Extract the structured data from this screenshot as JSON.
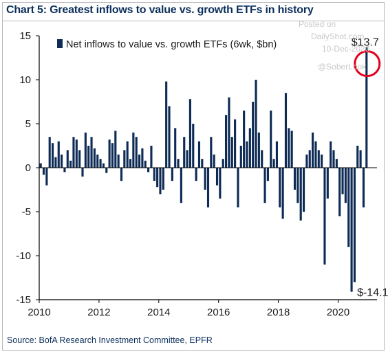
{
  "title": "Chart 5: Greatest inflows to value vs. growth ETFs in history",
  "source": "Source: BofA Research Investment Committee, EPFR",
  "watermark": {
    "posted_on": "Posted on",
    "site": "DailyShot.com",
    "date": "10-Dec-2020",
    "handle": "@SoberLook"
  },
  "colors": {
    "bar": "#0d2b55",
    "axis": "#000000",
    "highlight": "#e3001b",
    "title": "#0b2f5b"
  },
  "chart_data": {
    "type": "bar",
    "title": "Chart 5: Greatest inflows to value vs. growth ETFs in history",
    "xlabel": "",
    "ylabel": "",
    "xlim": [
      2010.0,
      2021.3
    ],
    "ylim": [
      -15,
      15
    ],
    "x_ticks": [
      2010,
      2012,
      2014,
      2016,
      2018,
      2020
    ],
    "y_ticks": [
      15,
      10,
      5,
      0,
      -5,
      -10,
      -15
    ],
    "grid": false,
    "legend": {
      "position": "top-left",
      "entries": [
        "Net inflows to value vs. growth ETFs (6wk, $bn)"
      ]
    },
    "series": [
      {
        "name": "Net inflows to value vs. growth ETFs (6wk, $bn)",
        "x": [
          2010.05,
          2010.15,
          2010.25,
          2010.35,
          2010.45,
          2010.55,
          2010.65,
          2010.75,
          2010.85,
          2010.95,
          2011.05,
          2011.15,
          2011.25,
          2011.35,
          2011.45,
          2011.55,
          2011.65,
          2011.75,
          2011.85,
          2011.95,
          2012.05,
          2012.15,
          2012.25,
          2012.35,
          2012.45,
          2012.55,
          2012.65,
          2012.75,
          2012.85,
          2012.95,
          2013.05,
          2013.15,
          2013.25,
          2013.35,
          2013.45,
          2013.55,
          2013.65,
          2013.75,
          2013.85,
          2013.95,
          2014.05,
          2014.15,
          2014.25,
          2014.35,
          2014.45,
          2014.55,
          2014.65,
          2014.75,
          2014.85,
          2014.95,
          2015.05,
          2015.15,
          2015.25,
          2015.35,
          2015.45,
          2015.55,
          2015.65,
          2015.75,
          2015.85,
          2015.95,
          2016.05,
          2016.15,
          2016.25,
          2016.35,
          2016.45,
          2016.55,
          2016.65,
          2016.75,
          2016.85,
          2016.95,
          2017.05,
          2017.15,
          2017.25,
          2017.35,
          2017.45,
          2017.55,
          2017.65,
          2017.75,
          2017.85,
          2017.95,
          2018.05,
          2018.15,
          2018.25,
          2018.35,
          2018.45,
          2018.55,
          2018.65,
          2018.75,
          2018.85,
          2018.95,
          2019.05,
          2019.15,
          2019.25,
          2019.35,
          2019.45,
          2019.55,
          2019.65,
          2019.75,
          2019.85,
          2019.95,
          2020.05,
          2020.15,
          2020.25,
          2020.35,
          2020.45,
          2020.55,
          2020.65,
          2020.75,
          2020.85,
          2020.95
        ],
        "values": [
          0.5,
          -0.8,
          -2.0,
          3.5,
          2.8,
          1.2,
          3.0,
          1.5,
          -0.5,
          2.0,
          0.8,
          3.5,
          3.2,
          2.0,
          -1.0,
          4.0,
          2.5,
          3.5,
          2.2,
          1.5,
          1.0,
          0.5,
          -0.6,
          3.2,
          2.8,
          4.2,
          1.5,
          -1.5,
          2.0,
          3.0,
          1.0,
          4.0,
          3.5,
          1.5,
          2.2,
          0.8,
          -0.5,
          2.5,
          -1.5,
          -2.2,
          -3.0,
          -2.5,
          9.8,
          7.0,
          -1.5,
          4.5,
          1.0,
          -4.0,
          3.5,
          2.0,
          7.8,
          5.0,
          -1.5,
          3.0,
          1.0,
          -2.5,
          -4.5,
          3.5,
          1.5,
          -2.0,
          -3.5,
          1.0,
          6.0,
          8.0,
          3.5,
          5.5,
          -4.5,
          2.5,
          6.5,
          3.0,
          4.5,
          7.5,
          10.0,
          4.0,
          2.0,
          -4.0,
          -1.5,
          6.5,
          1.0,
          3.0,
          -4.5,
          -5.8,
          8.5,
          4.5,
          4.2,
          -2.5,
          -4.0,
          -6.0,
          -5.0,
          1.5,
          2.0,
          4.0,
          3.0,
          2.0,
          1.5,
          -11.0,
          -3.5,
          3.0,
          2.0,
          1.0,
          -5.5,
          -3.0,
          -4.0,
          -9.0,
          -14.1,
          -13.0,
          2.5,
          2.0,
          -4.5,
          13.7
        ]
      }
    ],
    "annotations": [
      {
        "text": "$13.7",
        "x": 2020.95,
        "y": 13.7
      },
      {
        "text": "$-14.1",
        "x": 2020.45,
        "y": -14.1
      }
    ]
  }
}
